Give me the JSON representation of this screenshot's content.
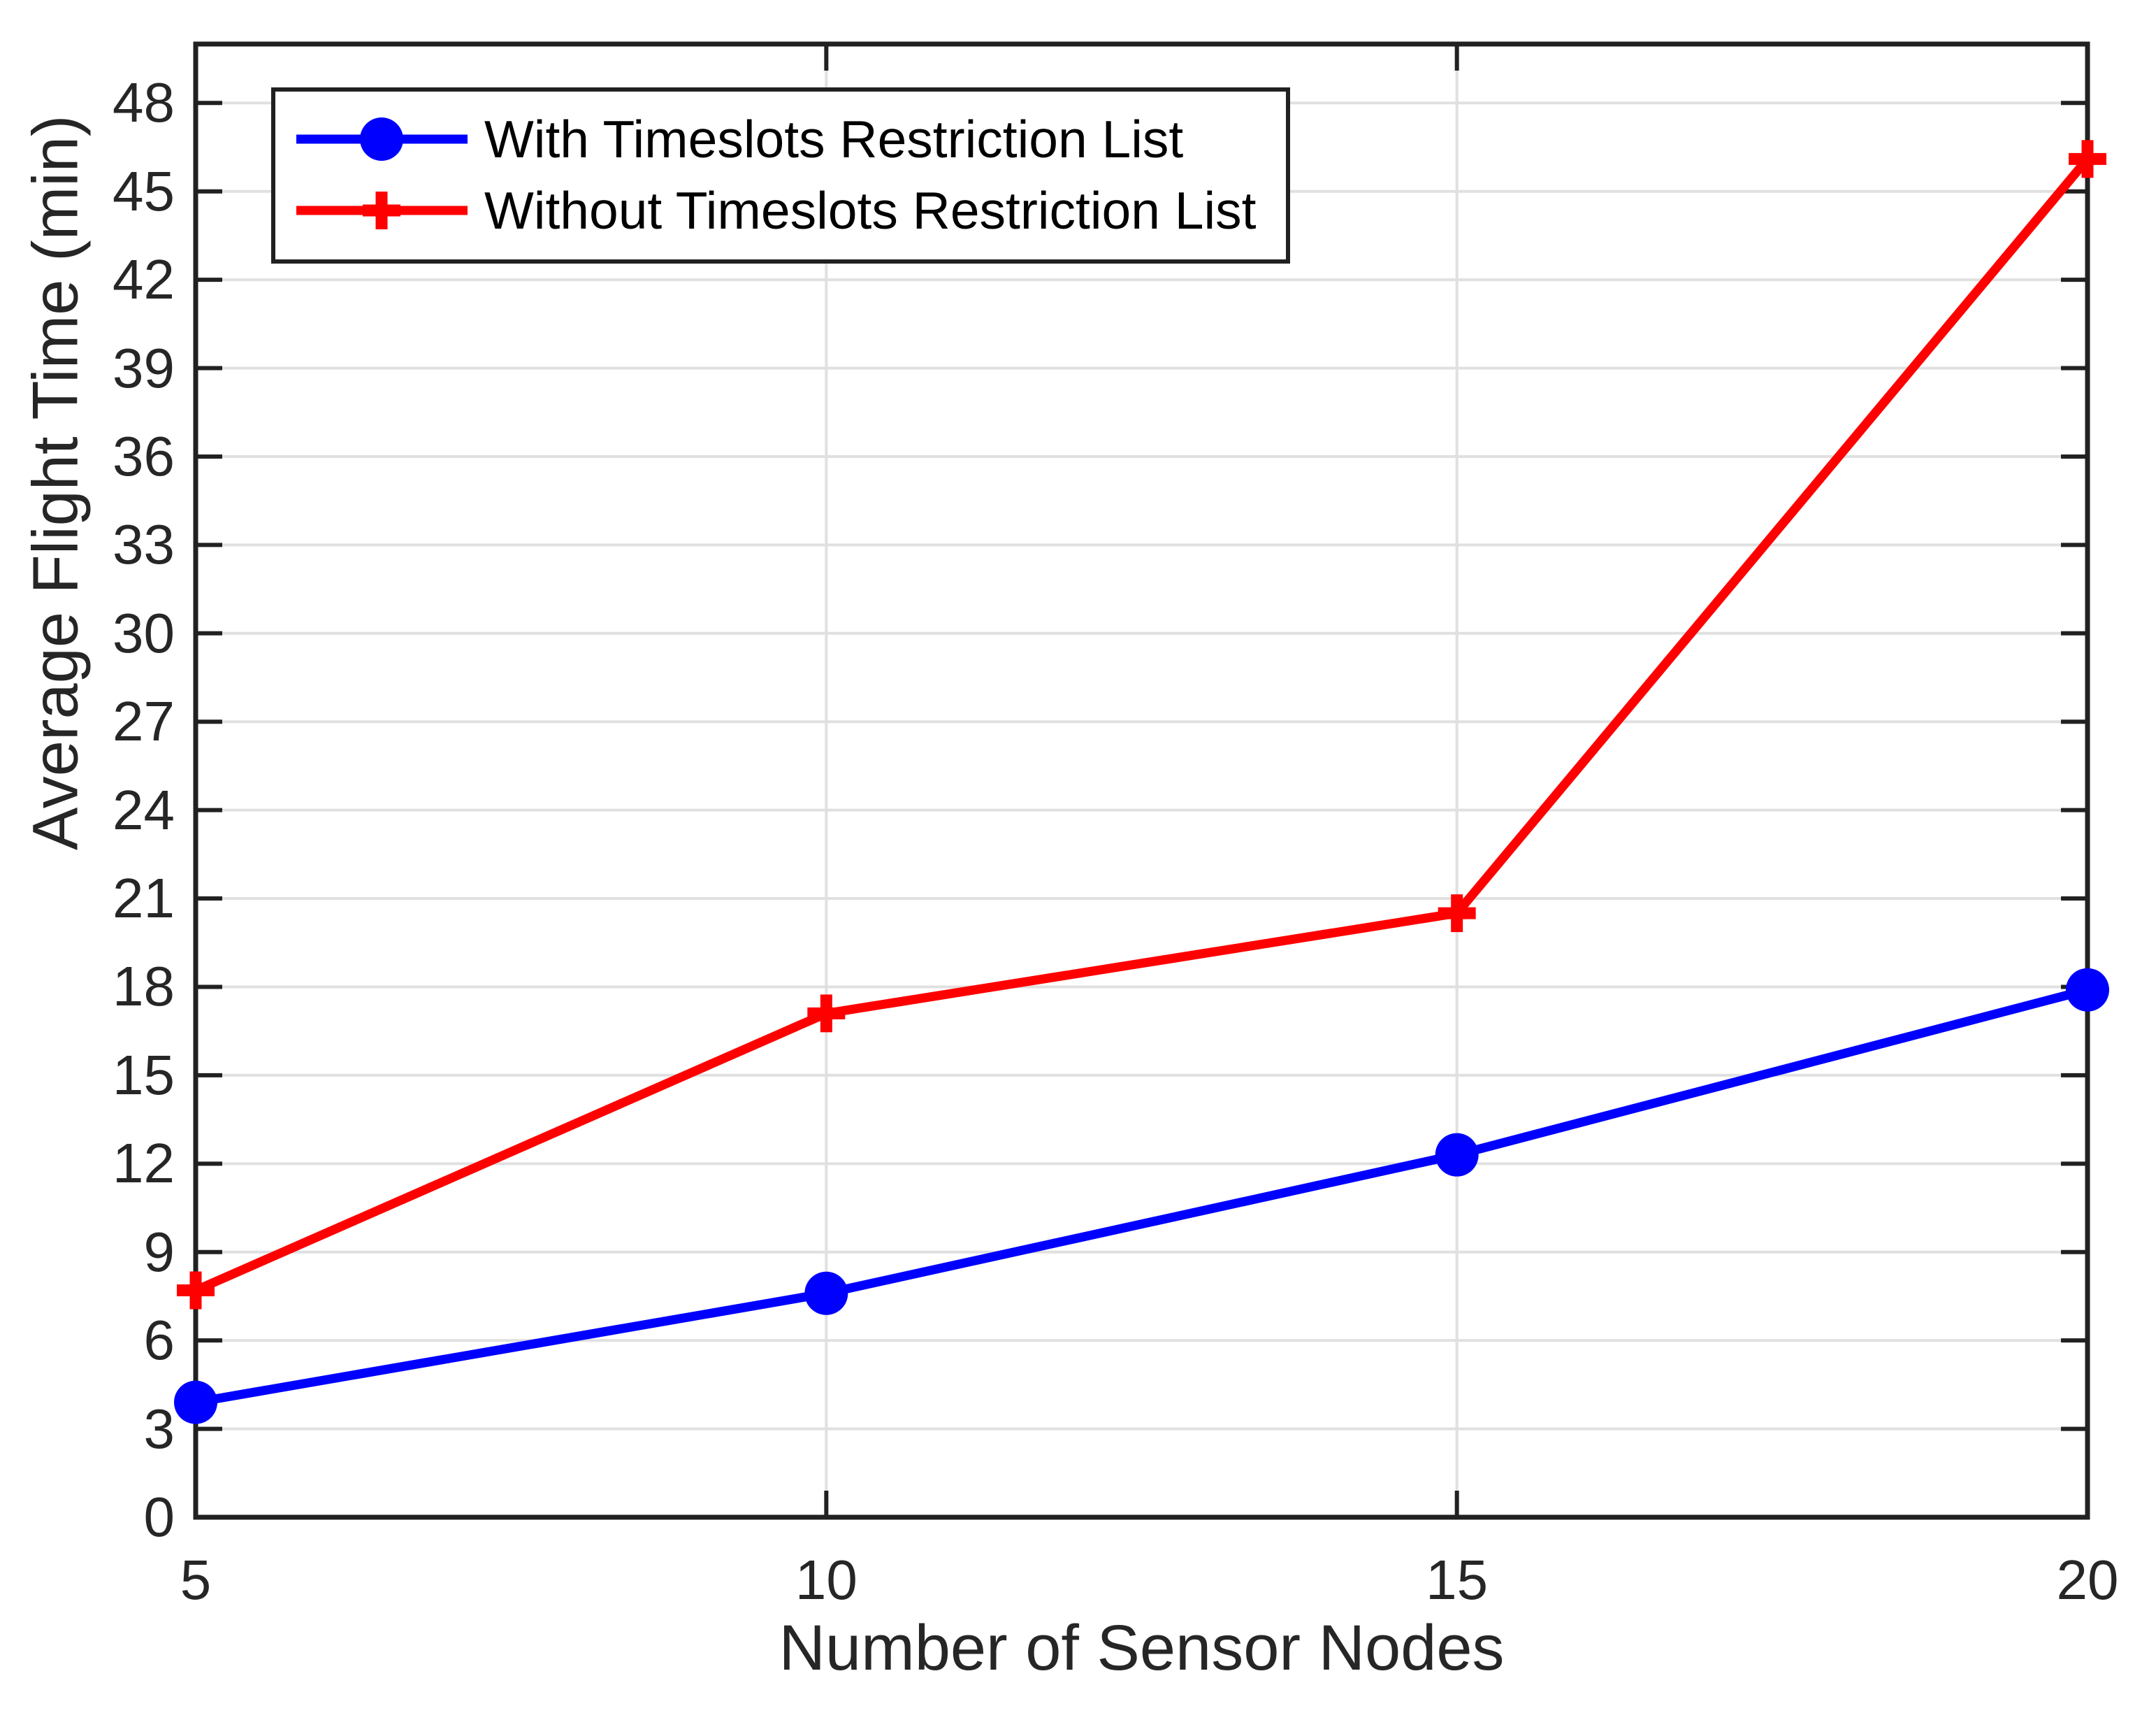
{
  "figure": {
    "xlabel": "Number of Sensor Nodes",
    "ylabel": "Average Flight Time (min)"
  },
  "chart_data": {
    "type": "line",
    "x": [
      5,
      10,
      15,
      20
    ],
    "series": [
      {
        "name": "With Timeslots Restriction List",
        "color": "#0000FF",
        "marker": "circle",
        "values": [
          3.9,
          7.6,
          12.3,
          17.9
        ]
      },
      {
        "name": "Without Timeslots Restriction List",
        "color": "#FF0000",
        "marker": "plus",
        "values": [
          7.7,
          17.1,
          20.5,
          46.1
        ]
      }
    ],
    "xlabel": "Number of Sensor Nodes",
    "ylabel": "Average Flight Time (min)",
    "xlim": [
      5,
      20
    ],
    "ylim": [
      0,
      50
    ],
    "xticks": [
      5,
      10,
      15,
      20
    ],
    "yticks": [
      0,
      3,
      6,
      9,
      12,
      15,
      18,
      21,
      24,
      27,
      30,
      33,
      36,
      39,
      42,
      45,
      48
    ],
    "grid": true,
    "legend_position": "top-left"
  },
  "style_colors": {
    "grid": "#E0E0E0",
    "axis": "#212121",
    "tick_text": "#262626",
    "series_blue": "#0000FF",
    "series_red": "#FF0000"
  }
}
